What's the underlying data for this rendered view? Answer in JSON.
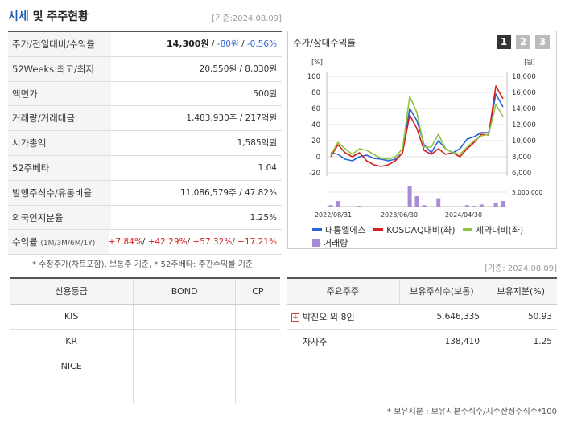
{
  "header": {
    "title_hl": "시세",
    "title_rest": " 및 주주현황",
    "date": "[기준:2024.08.09]"
  },
  "stats": {
    "price_label": "주가/전일대비/수익률",
    "price": "14,300원",
    "change": "-80원",
    "change_pct": "-0.56%",
    "w52_label": "52Weeks 최고/최저",
    "w52_value": "20,550원 / 8,030원",
    "par_label": "액면가",
    "par_value": "500원",
    "volume_label": "거래량/거래대금",
    "volume_value": "1,483,930주 / 217억원",
    "mcap_label": "시가총액",
    "mcap_value": "1,585억원",
    "beta_label": "52주베타",
    "beta_value": "1.04",
    "shares_label": "발행주식수/유동비율",
    "shares_value": "11,086,579주 / 47.82%",
    "foreign_label": "외국인지분율",
    "foreign_value": "1.25%",
    "return_label": "수익률",
    "return_periods": "(1M/3M/6M/1Y)",
    "return_1m": "+7.84%",
    "return_3m": "+42.29%",
    "return_6m": "+57.32%",
    "return_1y": "+17.21%"
  },
  "note1": "* 수정주가(차트포함), 보통주 기준, * 52주베타: 주간수익률 기준",
  "chart": {
    "title": "주가/상대수익률",
    "tabs": [
      "1",
      "2",
      "3"
    ],
    "active_tab": "1",
    "left_unit": "[%]",
    "right_unit": "[원]",
    "vol_tick": "5,000,000",
    "legend": [
      {
        "label": "대릉엘에스",
        "color": "#2a62d8"
      },
      {
        "label": "KOSDAQ대비(좌)",
        "color": "#d62020"
      },
      {
        "label": "제약대비(좌)",
        "color": "#8cc63f"
      },
      {
        "label": "거래량",
        "color": "#a98ad6"
      }
    ]
  },
  "chart_data": {
    "type": "line",
    "x_ticks": [
      "2022/08/31",
      "2023/06/30",
      "2024/04/30"
    ],
    "y_left_ticks": [
      100,
      80,
      60,
      40,
      20,
      0,
      -20
    ],
    "y_right_ticks": [
      "18,000",
      "16,000",
      "14,000",
      "12,000",
      "10,000",
      "8,000",
      "6,000"
    ],
    "ylim_left": [
      -20,
      100
    ],
    "series": [
      {
        "name": "대릉엘에스",
        "color": "#2a62d8",
        "values": [
          5,
          3,
          -3,
          -5,
          0,
          2,
          -2,
          -3,
          -5,
          -3,
          5,
          60,
          45,
          15,
          5,
          20,
          10,
          5,
          10,
          22,
          25,
          30,
          30,
          78,
          62
        ]
      },
      {
        "name": "KOSDAQ대비(좌)",
        "color": "#d62020",
        "values": [
          0,
          15,
          5,
          0,
          5,
          -5,
          -10,
          -12,
          -10,
          -5,
          5,
          52,
          35,
          8,
          3,
          10,
          3,
          5,
          0,
          10,
          18,
          28,
          27,
          88,
          72
        ]
      },
      {
        "name": "제약대비(좌)",
        "color": "#8cc63f",
        "values": [
          2,
          18,
          10,
          3,
          10,
          8,
          3,
          -2,
          -3,
          0,
          10,
          75,
          55,
          12,
          12,
          28,
          10,
          5,
          3,
          12,
          20,
          26,
          28,
          65,
          50
        ]
      }
    ],
    "volume": [
      2,
      8,
      0,
      0,
      1,
      0,
      0,
      0,
      0,
      0,
      0,
      30,
      15,
      2,
      0,
      12,
      0,
      0,
      0,
      2,
      1,
      3,
      0,
      5,
      8
    ]
  },
  "date2": "[기준: 2024.08.09]",
  "credit": {
    "headers": [
      "신용등급",
      "BOND",
      "CP"
    ],
    "rows": [
      [
        "KIS",
        "",
        ""
      ],
      [
        "KR",
        "",
        ""
      ],
      [
        "NICE",
        "",
        ""
      ],
      [
        "",
        "",
        ""
      ]
    ]
  },
  "holders": {
    "headers": [
      "주요주주",
      "보유주식수(보통)",
      "보유지분(%)"
    ],
    "rows": [
      {
        "name": "박진오 외 8인",
        "shares": "5,646,335",
        "pct": "50.93"
      },
      {
        "name": "자사주",
        "shares": "138,410",
        "pct": "1.25"
      },
      {
        "name": "",
        "shares": "",
        "pct": ""
      },
      {
        "name": "",
        "shares": "",
        "pct": ""
      }
    ]
  },
  "note2": "* 보유지분 : 보유지분주식수/지수산정주식수*100"
}
